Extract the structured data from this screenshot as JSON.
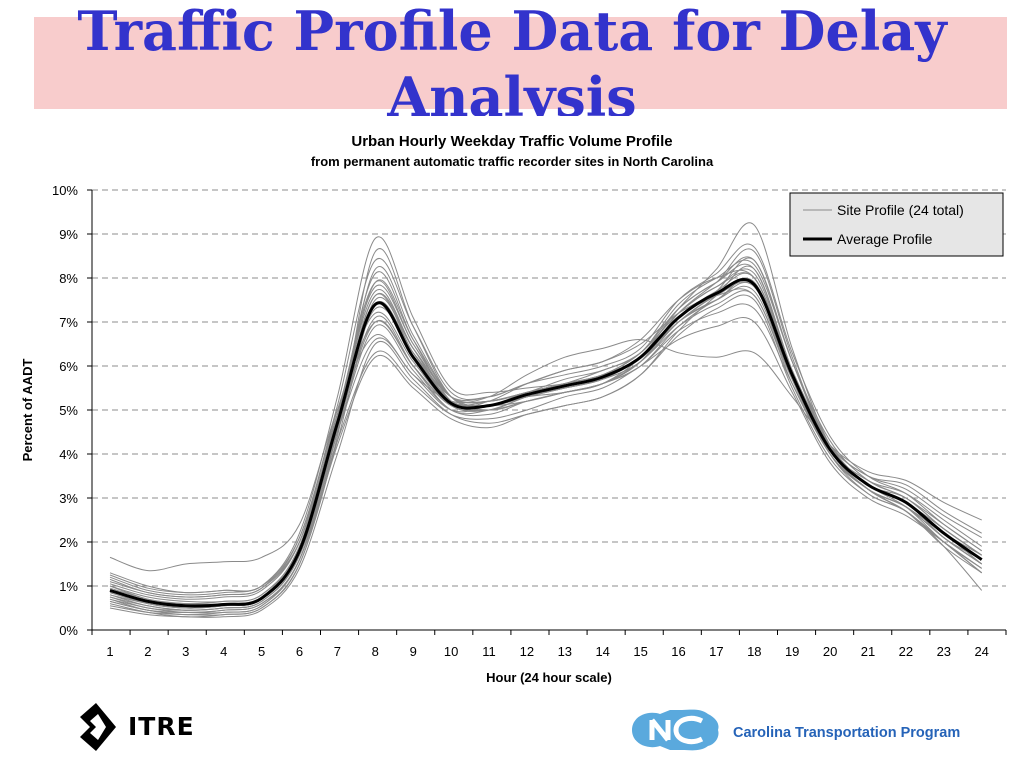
{
  "slide": {
    "title": "Traffic Profile Data for Delay Analysis"
  },
  "logos": {
    "itre_text": "ITRE",
    "program_text": "Carolina Transportation Program"
  },
  "colors": {
    "title": "#3333cc",
    "title_band": "#f8cccc",
    "site_line": "#8a8a8a",
    "average_line": "#000000",
    "program_text": "#2563b8",
    "nc_logo": "#5aa9dd"
  },
  "chart_data": {
    "type": "line",
    "title": "Urban Hourly Weekday Traffic Volume Profile",
    "subtitle": "from permanent automatic traffic recorder sites in North Carolina",
    "xlabel": "Hour (24 hour scale)",
    "ylabel": "Percent of AADT",
    "x": [
      1,
      2,
      3,
      4,
      5,
      6,
      7,
      8,
      9,
      10,
      11,
      12,
      13,
      14,
      15,
      16,
      17,
      18,
      19,
      20,
      21,
      22,
      23,
      24
    ],
    "x_ticks": [
      "1",
      "2",
      "3",
      "4",
      "5",
      "6",
      "7",
      "8",
      "9",
      "10",
      "11",
      "12",
      "13",
      "14",
      "15",
      "16",
      "17",
      "18",
      "19",
      "20",
      "21",
      "22",
      "23",
      "24"
    ],
    "y_ticks": [
      "0%",
      "1%",
      "2%",
      "3%",
      "4%",
      "5%",
      "6%",
      "7%",
      "8%",
      "9%",
      "10%"
    ],
    "ylim": [
      0,
      10
    ],
    "grid": "horizontal dashed",
    "legend_position": "top-right",
    "legend": [
      {
        "label": "Site Profile (24 total)",
        "style": "thin-gray"
      },
      {
        "label": "Average Profile",
        "style": "thick-black"
      }
    ],
    "average": [
      0.9,
      0.65,
      0.55,
      0.58,
      0.72,
      1.8,
      4.7,
      7.4,
      6.2,
      5.15,
      5.1,
      5.35,
      5.55,
      5.75,
      6.2,
      7.1,
      7.65,
      7.85,
      5.8,
      4.1,
      3.3,
      2.9,
      2.2,
      1.6
    ],
    "site_profiles": [
      [
        0.65,
        0.45,
        0.35,
        0.4,
        0.55,
        1.6,
        4.3,
        6.3,
        5.6,
        4.9,
        4.8,
        5.0,
        5.3,
        5.5,
        6.0,
        6.6,
        6.9,
        7.0,
        5.4,
        3.8,
        3.0,
        2.6,
        2.0,
        1.4
      ],
      [
        1.1,
        0.85,
        0.75,
        0.8,
        0.95,
        2.1,
        5.1,
        8.4,
        6.9,
        5.4,
        5.3,
        5.6,
        5.8,
        6.0,
        6.4,
        7.5,
        8.1,
        8.7,
        6.3,
        4.4,
        3.5,
        3.1,
        2.4,
        1.8
      ],
      [
        0.8,
        0.55,
        0.45,
        0.5,
        0.65,
        1.7,
        4.5,
        6.9,
        5.9,
        5.0,
        4.9,
        5.2,
        5.4,
        5.6,
        6.1,
        6.9,
        7.4,
        7.6,
        5.6,
        4.0,
        3.2,
        2.8,
        2.1,
        1.5
      ],
      [
        1.3,
        1.0,
        0.85,
        0.9,
        1.0,
        2.2,
        5.3,
        8.9,
        7.1,
        5.5,
        5.4,
        5.5,
        5.6,
        5.8,
        6.2,
        7.3,
        7.9,
        8.4,
        6.1,
        4.3,
        3.4,
        3.0,
        2.3,
        1.7
      ],
      [
        0.6,
        0.4,
        0.3,
        0.35,
        0.5,
        1.5,
        4.2,
        6.2,
        5.5,
        4.8,
        4.6,
        4.9,
        5.1,
        5.3,
        5.8,
        6.8,
        7.6,
        8.2,
        5.9,
        4.0,
        3.2,
        2.7,
        2.0,
        1.3
      ],
      [
        1.0,
        0.7,
        0.6,
        0.65,
        0.8,
        1.9,
        4.9,
        7.9,
        6.5,
        5.3,
        5.2,
        5.4,
        5.7,
        5.9,
        6.3,
        7.2,
        7.8,
        8.0,
        5.9,
        4.2,
        3.3,
        2.9,
        2.2,
        1.6
      ],
      [
        0.7,
        0.5,
        0.4,
        0.45,
        0.6,
        1.6,
        4.6,
        7.6,
        6.4,
        5.2,
        5.1,
        5.3,
        5.5,
        5.7,
        6.2,
        7.0,
        7.5,
        7.9,
        5.7,
        4.1,
        3.3,
        2.9,
        2.2,
        1.5
      ],
      [
        0.9,
        0.6,
        0.5,
        0.55,
        0.7,
        1.8,
        4.6,
        7.1,
        6.0,
        5.0,
        5.0,
        5.3,
        5.5,
        5.7,
        6.1,
        7.0,
        7.6,
        7.8,
        5.8,
        4.1,
        3.4,
        3.0,
        2.4,
        1.8
      ],
      [
        1.2,
        0.9,
        0.8,
        0.85,
        1.0,
        2.0,
        4.8,
        7.3,
        6.3,
        5.3,
        5.3,
        5.6,
        5.9,
        6.1,
        6.6,
        7.5,
        8.0,
        8.0,
        5.9,
        4.2,
        3.5,
        3.2,
        2.6,
        2.1
      ],
      [
        0.5,
        0.35,
        0.3,
        0.3,
        0.45,
        1.4,
        4.0,
        6.5,
        5.7,
        4.9,
        4.7,
        4.9,
        5.1,
        5.3,
        5.8,
        6.7,
        7.3,
        7.5,
        5.5,
        3.9,
        3.1,
        2.7,
        2.0,
        1.3
      ],
      [
        1.65,
        1.35,
        1.5,
        1.55,
        1.65,
        2.4,
        5.0,
        6.7,
        5.8,
        5.2,
        5.3,
        5.8,
        6.2,
        6.4,
        6.6,
        6.3,
        6.2,
        6.3,
        5.3,
        4.2,
        3.6,
        3.4,
        2.9,
        2.5
      ],
      [
        0.85,
        0.6,
        0.5,
        0.55,
        0.7,
        1.8,
        4.8,
        8.1,
        6.6,
        5.2,
        5.0,
        5.2,
        5.4,
        5.6,
        6.0,
        6.9,
        7.5,
        7.8,
        5.7,
        4.0,
        3.2,
        2.8,
        2.1,
        1.5
      ],
      [
        0.75,
        0.5,
        0.45,
        0.5,
        0.65,
        1.7,
        4.5,
        7.5,
        6.4,
        5.3,
        5.2,
        5.4,
        5.6,
        5.8,
        6.3,
        7.2,
        7.8,
        8.1,
        5.9,
        4.1,
        3.3,
        2.9,
        2.1,
        1.5
      ],
      [
        1.05,
        0.8,
        0.7,
        0.75,
        0.9,
        2.0,
        5.0,
        7.2,
        6.1,
        5.1,
        5.0,
        5.3,
        5.5,
        5.7,
        6.1,
        7.0,
        7.5,
        7.7,
        5.7,
        4.1,
        3.3,
        2.9,
        2.3,
        1.7
      ],
      [
        0.95,
        0.7,
        0.6,
        0.6,
        0.75,
        1.8,
        4.6,
        7.0,
        6.0,
        5.1,
        5.0,
        5.2,
        5.4,
        5.6,
        6.0,
        6.8,
        7.2,
        7.3,
        5.6,
        4.0,
        3.2,
        2.8,
        2.2,
        1.7
      ],
      [
        0.7,
        0.45,
        0.4,
        0.45,
        0.6,
        1.6,
        4.3,
        7.4,
        6.3,
        5.2,
        5.1,
        5.2,
        5.4,
        5.6,
        6.2,
        7.3,
        8.2,
        9.2,
        6.4,
        4.2,
        3.3,
        2.8,
        2.0,
        1.4
      ],
      [
        1.15,
        0.85,
        0.75,
        0.8,
        0.95,
        2.0,
        4.9,
        7.8,
        6.5,
        5.3,
        5.2,
        5.4,
        5.6,
        5.8,
        6.2,
        7.1,
        7.6,
        7.9,
        5.8,
        4.1,
        3.3,
        3.0,
        2.3,
        1.7
      ],
      [
        0.55,
        0.4,
        0.35,
        0.35,
        0.5,
        1.5,
        4.4,
        8.6,
        6.9,
        5.3,
        5.1,
        5.3,
        5.4,
        5.6,
        6.1,
        7.1,
        7.7,
        8.4,
        6.1,
        4.1,
        3.2,
        2.7,
        2.0,
        1.4
      ],
      [
        0.9,
        0.65,
        0.55,
        0.6,
        0.75,
        1.9,
        4.7,
        7.6,
        6.3,
        5.2,
        5.2,
        5.4,
        5.6,
        5.8,
        6.3,
        7.3,
        7.9,
        8.2,
        5.9,
        4.1,
        3.2,
        2.8,
        2.1,
        1.5
      ],
      [
        0.8,
        0.6,
        0.5,
        0.55,
        0.7,
        1.8,
        4.5,
        6.6,
        5.8,
        5.0,
        5.1,
        5.4,
        5.6,
        5.9,
        6.3,
        7.4,
        8.0,
        8.3,
        6.1,
        4.2,
        3.3,
        2.9,
        2.1,
        1.6
      ],
      [
        1.0,
        0.75,
        0.65,
        0.65,
        0.8,
        1.9,
        4.8,
        7.7,
        6.4,
        5.2,
        5.2,
        5.4,
        5.6,
        5.8,
        6.2,
        7.0,
        7.6,
        7.9,
        5.8,
        4.1,
        3.4,
        3.1,
        2.5,
        1.9
      ],
      [
        0.65,
        0.45,
        0.4,
        0.4,
        0.55,
        1.6,
        4.5,
        8.2,
        6.7,
        5.3,
        5.0,
        5.2,
        5.4,
        5.6,
        6.1,
        7.2,
        7.9,
        8.6,
        6.2,
        4.1,
        3.2,
        2.7,
        1.9,
        1.3
      ],
      [
        1.25,
        0.95,
        0.85,
        0.9,
        1.0,
        2.1,
        4.9,
        7.0,
        6.0,
        5.1,
        5.2,
        5.6,
        5.9,
        6.1,
        6.5,
        7.2,
        7.6,
        7.6,
        5.7,
        4.2,
        3.5,
        3.3,
        2.7,
        2.2
      ],
      [
        0.75,
        0.55,
        0.45,
        0.5,
        0.65,
        1.7,
        4.6,
        7.9,
        6.6,
        5.3,
        5.1,
        5.3,
        5.5,
        5.7,
        6.2,
        7.1,
        7.7,
        8.0,
        5.8,
        4.0,
        3.1,
        2.7,
        1.9,
        0.9
      ]
    ]
  }
}
